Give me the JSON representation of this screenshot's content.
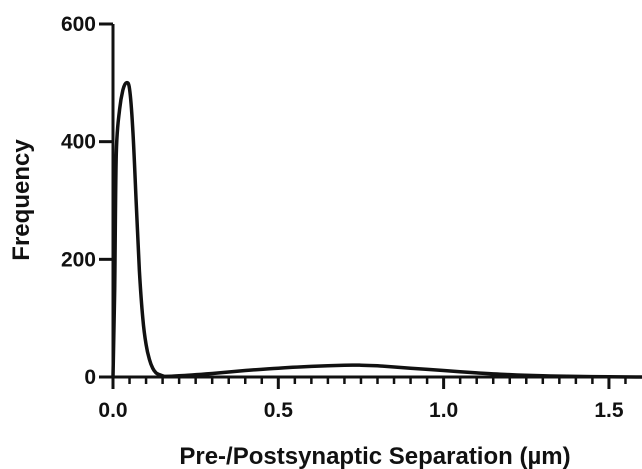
{
  "chart_data": {
    "type": "line",
    "title": "",
    "xlabel": "Pre-/Postsynaptic Separation (µm)",
    "ylabel": "Frequency",
    "xlim": [
      0,
      1.6
    ],
    "ylim": [
      0,
      600
    ],
    "x_ticks": {
      "major": [
        0.0,
        0.5,
        1.0,
        1.5
      ],
      "labels": [
        "0.0",
        "0.5",
        "1.0",
        "1.5"
      ],
      "minor_step": 0.05
    },
    "y_ticks": {
      "major": [
        0,
        200,
        400,
        600
      ],
      "labels": [
        "0",
        "200",
        "400",
        "600"
      ]
    },
    "grid": false,
    "line_color": "#111111",
    "series": [
      {
        "x": [
          0.0,
          0.005,
          0.01,
          0.02,
          0.03,
          0.04,
          0.05,
          0.06,
          0.07,
          0.08,
          0.09,
          0.1,
          0.11,
          0.12,
          0.13,
          0.14,
          0.15,
          0.16,
          0.2,
          0.3,
          0.4,
          0.5,
          0.6,
          0.7,
          0.75,
          0.8,
          0.9,
          1.0,
          1.1,
          1.2,
          1.3,
          1.4,
          1.5,
          1.6
        ],
        "y": [
          0,
          150,
          380,
          455,
          488,
          500,
          490,
          420,
          300,
          180,
          100,
          55,
          30,
          15,
          7,
          4,
          2,
          1,
          2,
          6,
          11,
          15,
          18,
          20,
          20,
          19,
          15,
          11,
          7,
          4,
          2,
          1,
          0.5,
          0
        ]
      }
    ]
  }
}
